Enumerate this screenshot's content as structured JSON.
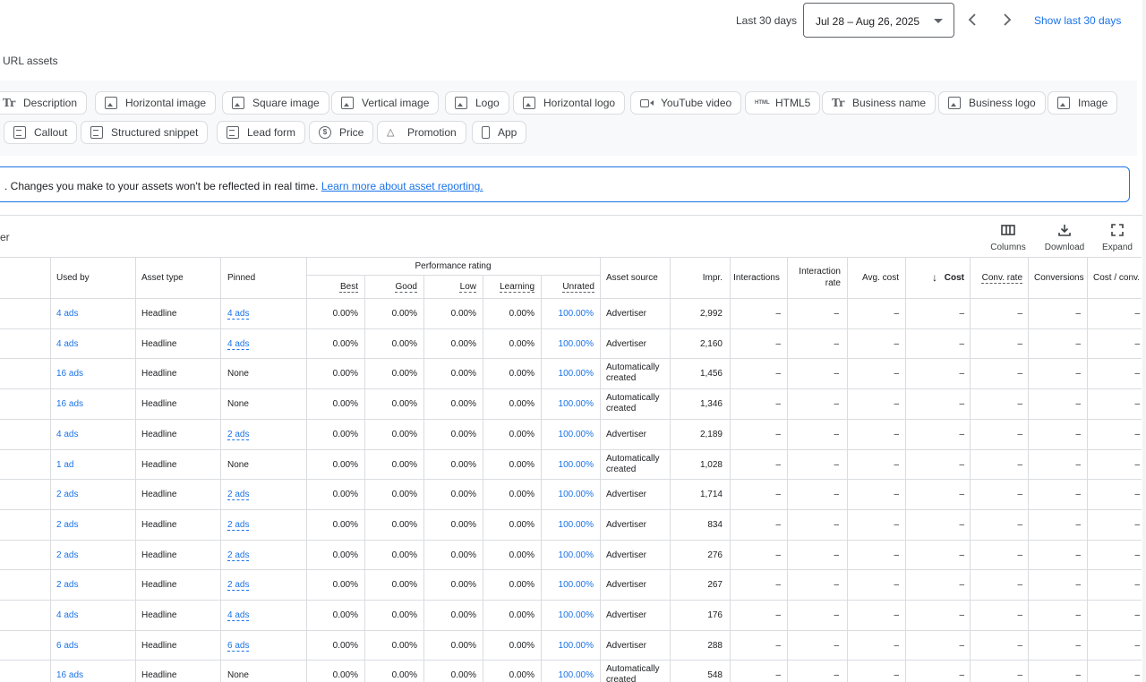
{
  "datebar": {
    "range_label": "Last 30 days",
    "date_value": "Jul 28 – Aug 26, 2025",
    "show_last": "Show last 30 days"
  },
  "section": {
    "title": "URL assets"
  },
  "chips": [
    {
      "label": "Description",
      "icon": "text-format-icon"
    },
    {
      "label": "Horizontal image",
      "icon": "image-icon"
    },
    {
      "label": "Square image",
      "icon": "image-icon"
    },
    {
      "label": "Vertical image",
      "icon": "image-icon"
    },
    {
      "label": "Logo",
      "icon": "image-icon"
    },
    {
      "label": "Horizontal logo",
      "icon": "image-icon"
    },
    {
      "label": "YouTube video",
      "icon": "video-icon"
    },
    {
      "label": "HTML5",
      "icon": "html-icon"
    },
    {
      "label": "Business name",
      "icon": "text-format-icon"
    },
    {
      "label": "Business logo",
      "icon": "image-icon"
    },
    {
      "label": "Image",
      "icon": "image-icon"
    },
    {
      "label": "Callout",
      "icon": "document-icon"
    },
    {
      "label": "Structured snippet",
      "icon": "document-icon"
    },
    {
      "label": "Lead form",
      "icon": "document-icon"
    },
    {
      "label": "Price",
      "icon": "price-icon"
    },
    {
      "label": "Promotion",
      "icon": "megaphone-icon"
    },
    {
      "label": "App",
      "icon": "phone-icon"
    }
  ],
  "banner": {
    "text": ". Changes you make to your assets won't be reflected in real time.",
    "link": "Learn more about asset reporting."
  },
  "toolbar": {
    "filter_text": "er",
    "columns": "Columns",
    "download": "Download",
    "expand": "Expand"
  },
  "table": {
    "headers": {
      "used_by": "Used by",
      "asset_type": "Asset type",
      "pinned": "Pinned",
      "performance": "Performance rating",
      "best": "Best",
      "good": "Good",
      "low": "Low",
      "learning": "Learning",
      "unrated": "Unrated",
      "asset_source": "Asset source",
      "impr": "Impr.",
      "interactions": "Interactions",
      "interaction_rate": "Interaction rate",
      "avg_cost": "Avg. cost",
      "cost": "Cost",
      "conv_rate": "Conv. rate",
      "conversions": "Conversions",
      "cost_conv": "Cost / conv."
    },
    "rows": [
      {
        "used_by": "4 ads",
        "type": "Headline",
        "pinned": "4 ads",
        "best": "0.00%",
        "good": "0.00%",
        "low": "0.00%",
        "learning": "0.00%",
        "unrated": "100.00%",
        "source": "Advertiser",
        "impr": "2,992"
      },
      {
        "used_by": "4 ads",
        "type": "Headline",
        "pinned": "4 ads",
        "best": "0.00%",
        "good": "0.00%",
        "low": "0.00%",
        "learning": "0.00%",
        "unrated": "100.00%",
        "source": "Advertiser",
        "impr": "2,160"
      },
      {
        "used_by": "16 ads",
        "type": "Headline",
        "pinned": "None",
        "best": "0.00%",
        "good": "0.00%",
        "low": "0.00%",
        "learning": "0.00%",
        "unrated": "100.00%",
        "source": "Automatically created",
        "impr": "1,456"
      },
      {
        "used_by": "16 ads",
        "type": "Headline",
        "pinned": "None",
        "best": "0.00%",
        "good": "0.00%",
        "low": "0.00%",
        "learning": "0.00%",
        "unrated": "100.00%",
        "source": "Automatically created",
        "impr": "1,346"
      },
      {
        "used_by": "4 ads",
        "type": "Headline",
        "pinned": "2 ads",
        "best": "0.00%",
        "good": "0.00%",
        "low": "0.00%",
        "learning": "0.00%",
        "unrated": "100.00%",
        "source": "Advertiser",
        "impr": "2,189"
      },
      {
        "used_by": "1 ad",
        "type": "Headline",
        "pinned": "None",
        "best": "0.00%",
        "good": "0.00%",
        "low": "0.00%",
        "learning": "0.00%",
        "unrated": "100.00%",
        "source": "Automatically created",
        "impr": "1,028"
      },
      {
        "used_by": "2 ads",
        "type": "Headline",
        "pinned": "2 ads",
        "best": "0.00%",
        "good": "0.00%",
        "low": "0.00%",
        "learning": "0.00%",
        "unrated": "100.00%",
        "source": "Advertiser",
        "impr": "1,714"
      },
      {
        "used_by": "2 ads",
        "type": "Headline",
        "pinned": "2 ads",
        "best": "0.00%",
        "good": "0.00%",
        "low": "0.00%",
        "learning": "0.00%",
        "unrated": "100.00%",
        "source": "Advertiser",
        "impr": "834"
      },
      {
        "used_by": "2 ads",
        "type": "Headline",
        "pinned": "2 ads",
        "best": "0.00%",
        "good": "0.00%",
        "low": "0.00%",
        "learning": "0.00%",
        "unrated": "100.00%",
        "source": "Advertiser",
        "impr": "276"
      },
      {
        "used_by": "2 ads",
        "type": "Headline",
        "pinned": "2 ads",
        "best": "0.00%",
        "good": "0.00%",
        "low": "0.00%",
        "learning": "0.00%",
        "unrated": "100.00%",
        "source": "Advertiser",
        "impr": "267"
      },
      {
        "used_by": "4 ads",
        "type": "Headline",
        "pinned": "4 ads",
        "best": "0.00%",
        "good": "0.00%",
        "low": "0.00%",
        "learning": "0.00%",
        "unrated": "100.00%",
        "source": "Advertiser",
        "impr": "176"
      },
      {
        "used_by": "6 ads",
        "type": "Headline",
        "pinned": "6 ads",
        "best": "0.00%",
        "good": "0.00%",
        "low": "0.00%",
        "learning": "0.00%",
        "unrated": "100.00%",
        "source": "Advertiser",
        "impr": "288"
      },
      {
        "used_by": "16 ads",
        "type": "Headline",
        "pinned": "None",
        "best": "0.00%",
        "good": "0.00%",
        "low": "0.00%",
        "learning": "0.00%",
        "unrated": "100.00%",
        "source": "Automatically created",
        "impr": "548"
      }
    ],
    "dash": "–"
  },
  "colors": {
    "link": "#1a73e8",
    "border": "#dadce0",
    "chip_bg": "#f8f9fa"
  }
}
